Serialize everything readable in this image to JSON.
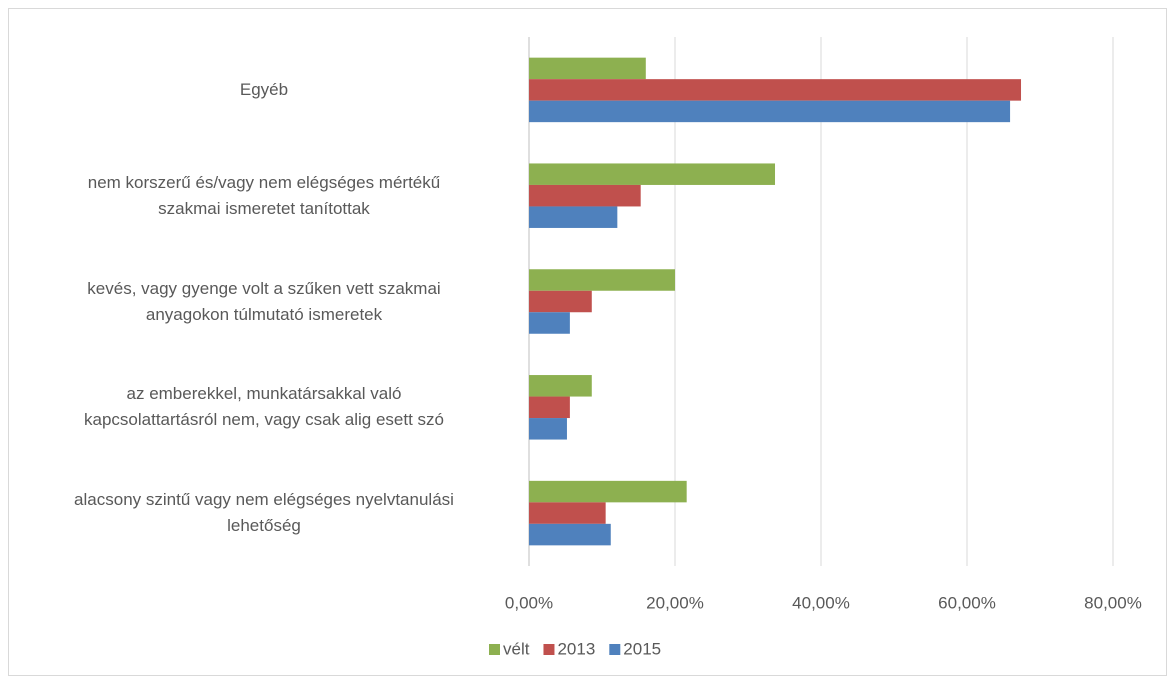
{
  "chart_data": {
    "type": "barh",
    "categories": [
      "Egyéb",
      "nem korszerű és/vagy nem elégséges mértékű\nszakmai ismeretet tanítottak",
      "kevés, vagy gyenge volt a szűken vett szakmai\nanyagokon túlmutató ismeretek",
      "az emberekkel, munkatársakkal való\nkapcsolattartásról nem, vagy csak alig esett szó",
      "alacsony szintű vagy nem elégséges nyelvtanulási\nlehetőség"
    ],
    "series": [
      {
        "name": "vélt",
        "color": "#8db050",
        "values": [
          16.0,
          33.7,
          20.0,
          8.6,
          21.6
        ]
      },
      {
        "name": "2013",
        "color": "#c0504d",
        "values": [
          67.4,
          15.3,
          8.6,
          5.6,
          10.5
        ]
      },
      {
        "name": "2015",
        "color": "#4f81bd",
        "values": [
          65.9,
          12.1,
          5.6,
          5.2,
          11.2
        ]
      }
    ],
    "xlim": [
      0,
      80
    ],
    "xticks": [
      {
        "value": 0,
        "label": "0,00%"
      },
      {
        "value": 20,
        "label": "20,00%"
      },
      {
        "value": 40,
        "label": "40,00%"
      },
      {
        "value": 60,
        "label": "60,00%"
      },
      {
        "value": 80,
        "label": "80,00%"
      }
    ],
    "grid": true,
    "legend": "bottom"
  }
}
